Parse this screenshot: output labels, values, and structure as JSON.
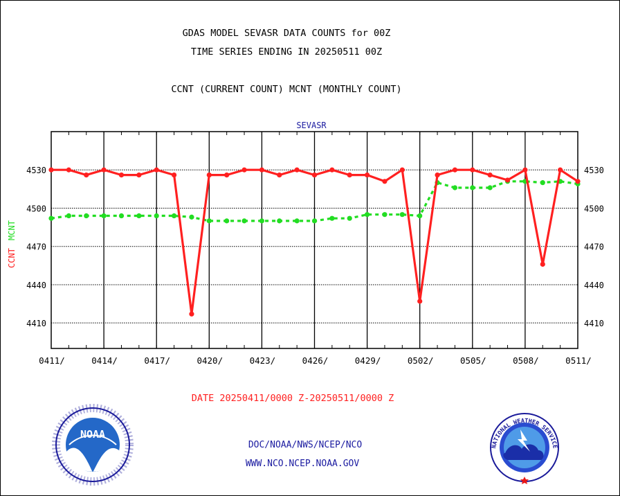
{
  "header": {
    "title_line1": "GDAS MODEL SEVASR DATA COUNTS for 00Z",
    "title_line2": "TIME SERIES ENDING IN 20250511 00Z",
    "subtitle": "CCNT (CURRENT COUNT) MCNT (MONTHLY COUNT)"
  },
  "footer": {
    "date_range": "DATE 20250411/0000 Z-20250511/0000 Z",
    "org_line": "DOC/NOAA/NWS/NCEP/NCO",
    "url_line": "WWW.NCO.NCEP.NOAA.GOV"
  },
  "logos": {
    "noaa_left": "NOAA",
    "nws_right": "NATIONAL WEATHER SERVICE"
  },
  "colors": {
    "ccnt": "#ff2020",
    "mcnt": "#22dd22",
    "footer_blue": "#1a1aa0",
    "sub_blue": "#1a1aa0"
  },
  "chart_data": {
    "type": "line",
    "title": "SEVASR",
    "ylabel_series": [
      "CCNT",
      "MCNT"
    ],
    "ylim": [
      4390,
      4560
    ],
    "yticks": [
      4410,
      4440,
      4470,
      4500,
      4530
    ],
    "xticks": [
      "0411/",
      "0414/",
      "0417/",
      "0420/",
      "0423/",
      "0426/",
      "0429/",
      "0502/",
      "0505/",
      "0508/",
      "0511/"
    ],
    "grid": true,
    "x_days": 31,
    "series": [
      {
        "name": "CCNT",
        "values": [
          4530,
          4530,
          4526,
          4530,
          4526,
          4526,
          4530,
          4526,
          4417,
          4526,
          4526,
          4530,
          4530,
          4526,
          4530,
          4526,
          4530,
          4526,
          4526,
          4521,
          4530,
          4427,
          4526,
          4530,
          4530,
          4526,
          4522,
          4530,
          4456,
          4530,
          4521
        ]
      },
      {
        "name": "MCNT",
        "values": [
          4492,
          4494,
          4494,
          4494,
          4494,
          4494,
          4494,
          4494,
          4493,
          4490,
          4490,
          4490,
          4490,
          4490,
          4490,
          4490,
          4492,
          4492,
          4495,
          4495,
          4495,
          4494,
          4520,
          4516,
          4516,
          4516,
          4521,
          4521,
          4520,
          4521,
          4519
        ]
      }
    ]
  }
}
